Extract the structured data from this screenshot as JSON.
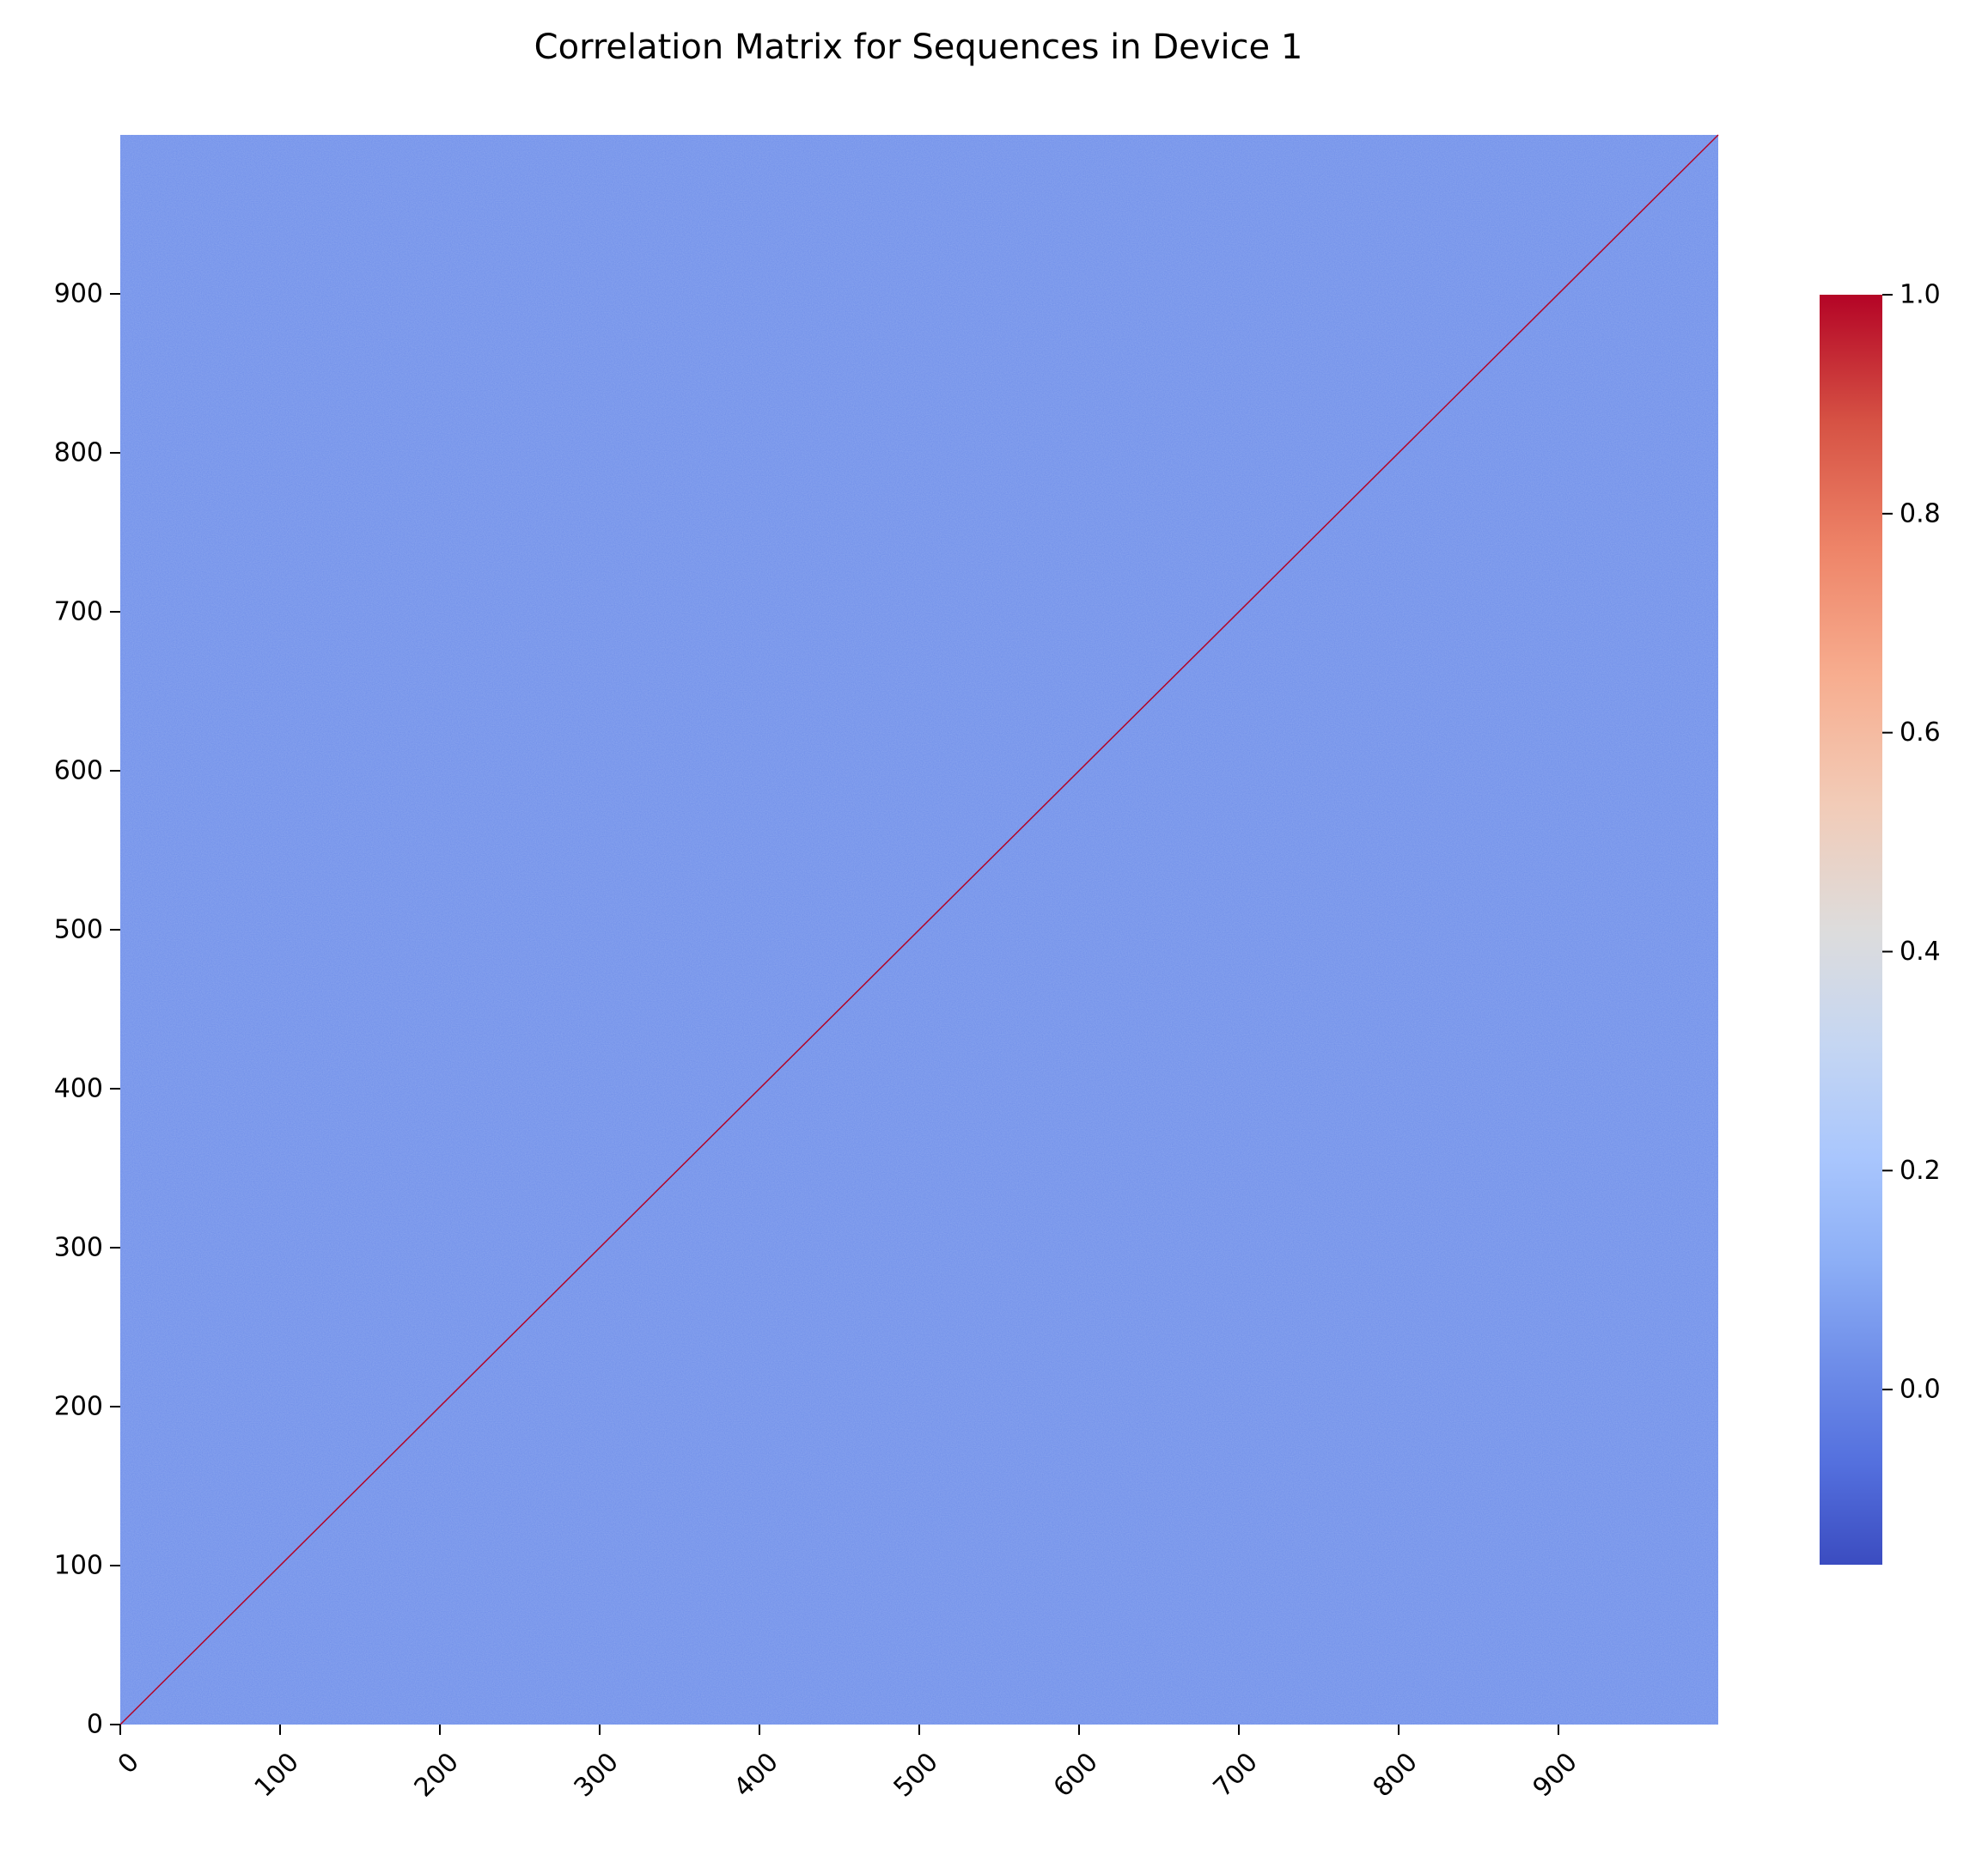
{
  "chart_data": {
    "type": "heatmap",
    "title": "Correlation Matrix for Sequences in Device 1",
    "xlabel": "",
    "ylabel": "",
    "matrix_size": 1000,
    "x_range": [
      0,
      1000
    ],
    "y_range": [
      0,
      1000
    ],
    "x_ticks": [
      0,
      100,
      200,
      300,
      400,
      500,
      600,
      700,
      800,
      900
    ],
    "y_ticks": [
      0,
      100,
      200,
      300,
      400,
      500,
      600,
      700,
      800,
      900
    ],
    "x_tick_rotation_deg": 45,
    "off_diagonal_value_approx": 0.0,
    "diagonal_value": 1.0,
    "colormap": "coolwarm",
    "colorbar": {
      "vmin": -0.16,
      "vmax": 1.0,
      "ticks": [
        "0.0",
        "0.2",
        "0.4",
        "0.6",
        "0.8",
        "1.0"
      ],
      "tick_values": [
        0.0,
        0.2,
        0.4,
        0.6,
        0.8,
        1.0
      ]
    },
    "colors": {
      "cold_end": "#3b4cc0",
      "background_cell": "#6f8ee9",
      "diagonal": "#b40426",
      "hot_end": "#b40426"
    },
    "grid": false
  }
}
